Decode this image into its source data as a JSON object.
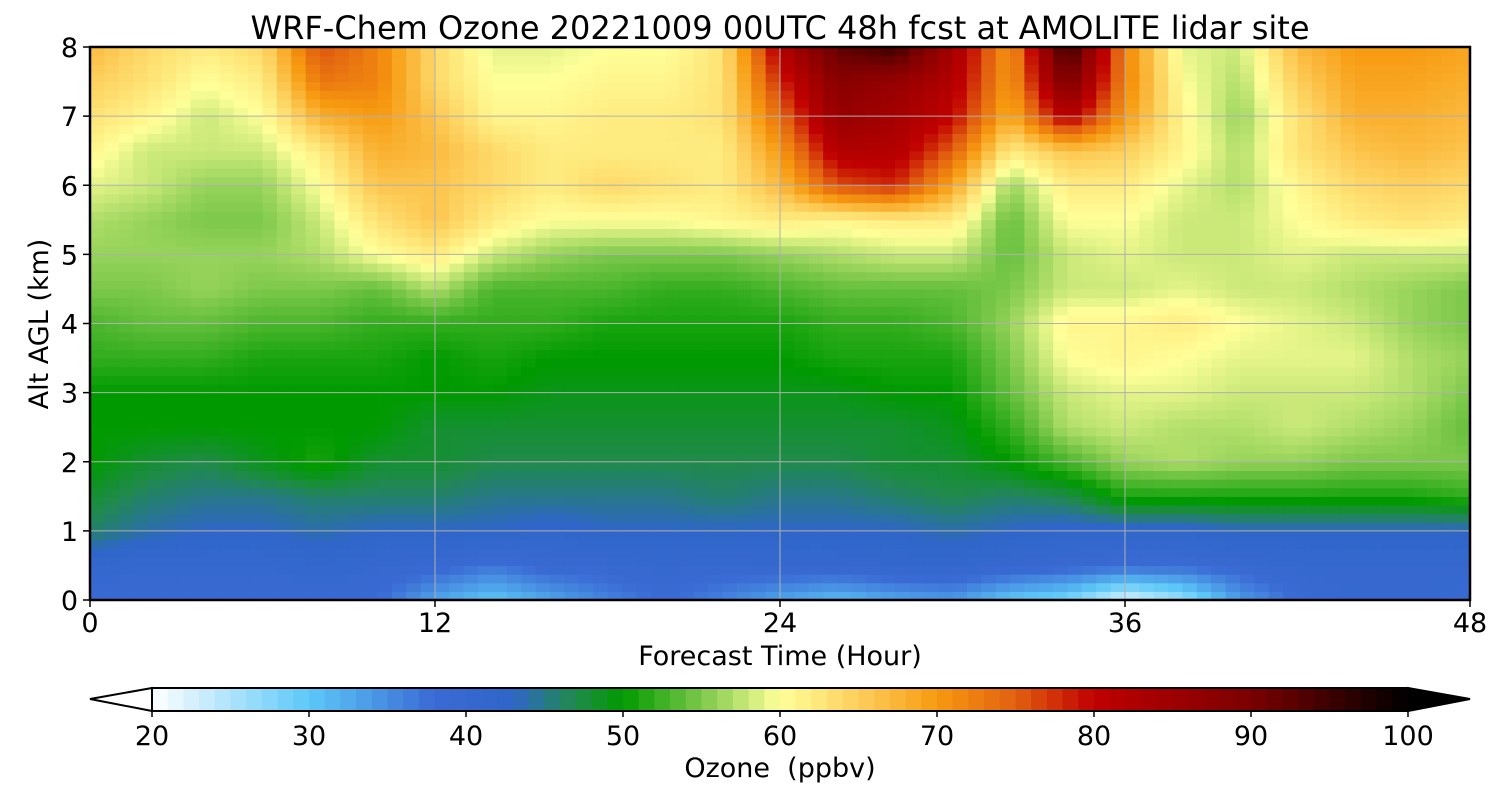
{
  "chart_data": {
    "type": "heatmap",
    "title": "WRF-Chem Ozone  20221009 00UTC 48h fcst at AMOLITE lidar site",
    "xlabel": "Forecast Time (Hour)",
    "ylabel": "Alt AGL (km)",
    "xlim": [
      0,
      48
    ],
    "ylim": [
      0,
      8
    ],
    "x_ticks": [
      "0",
      "12",
      "24",
      "36",
      "48"
    ],
    "y_ticks": [
      "0",
      "1",
      "2",
      "3",
      "4",
      "5",
      "6",
      "7",
      "8"
    ],
    "grid": true,
    "colorbar": {
      "label": "Ozone  (ppbv)",
      "range": [
        20,
        100
      ],
      "ticks": [
        "20",
        "30",
        "40",
        "50",
        "60",
        "70",
        "80",
        "90",
        "100"
      ],
      "extend": "both",
      "stops": [
        {
          "v": 20,
          "color": "#ffffff"
        },
        {
          "v": 30,
          "color": "#5cc8f8"
        },
        {
          "v": 38,
          "color": "#3a6ad4"
        },
        {
          "v": 43,
          "color": "#2f66c8"
        },
        {
          "v": 47,
          "color": "#1f8a4a"
        },
        {
          "v": 50,
          "color": "#009a00"
        },
        {
          "v": 55,
          "color": "#7cc84a"
        },
        {
          "v": 60,
          "color": "#ffff99"
        },
        {
          "v": 65,
          "color": "#fdcf5c"
        },
        {
          "v": 70,
          "color": "#f79a10"
        },
        {
          "v": 75,
          "color": "#e26010"
        },
        {
          "v": 80,
          "color": "#c00000"
        },
        {
          "v": 90,
          "color": "#7a0000"
        },
        {
          "v": 100,
          "color": "#000000"
        }
      ]
    },
    "x_hours": [
      0,
      2,
      4,
      6,
      8,
      10,
      12,
      14,
      16,
      18,
      20,
      22,
      24,
      26,
      28,
      30,
      32,
      34,
      36,
      38,
      40,
      42,
      44,
      46,
      48
    ],
    "y_km": [
      0,
      0.5,
      1,
      1.5,
      2,
      2.5,
      3,
      3.5,
      4,
      4.5,
      5,
      5.5,
      6,
      6.5,
      7,
      7.5,
      8
    ],
    "values_ppbv": [
      [
        38,
        38,
        38,
        38,
        38,
        38,
        33,
        30,
        33,
        36,
        38,
        36,
        33,
        31,
        33,
        34,
        30,
        28,
        22,
        26,
        34,
        38,
        40,
        40,
        39
      ],
      [
        41,
        40,
        40,
        40,
        41,
        40,
        39,
        37,
        39,
        39,
        40,
        39,
        40,
        40,
        41,
        41,
        40,
        39,
        38,
        38,
        39,
        40,
        40,
        40,
        40
      ],
      [
        46,
        44,
        43,
        43,
        44,
        43,
        43,
        43,
        42,
        43,
        43,
        43,
        43,
        43,
        43,
        44,
        43,
        42,
        42,
        42,
        43,
        43,
        43,
        43,
        43
      ],
      [
        48,
        46,
        45,
        45,
        46,
        46,
        46,
        45,
        45,
        45,
        45,
        46,
        45,
        45,
        46,
        47,
        46,
        47,
        51,
        51,
        51,
        51,
        51,
        51,
        52
      ],
      [
        50,
        48,
        47,
        49,
        51,
        48,
        48,
        47,
        47,
        47,
        47,
        47,
        47,
        47,
        48,
        48,
        50,
        53,
        56,
        57,
        56,
        56,
        55,
        55,
        55
      ],
      [
        50,
        50,
        50,
        50,
        50,
        50,
        48,
        48,
        48,
        48,
        48,
        48,
        48,
        48,
        48,
        49,
        52,
        57,
        58,
        57,
        57,
        58,
        57,
        56,
        54
      ],
      [
        50,
        50,
        50,
        50,
        50,
        50,
        50,
        50,
        49,
        49,
        49,
        49,
        49,
        49,
        50,
        50,
        54,
        58,
        59,
        59,
        58,
        58,
        58,
        57,
        55
      ],
      [
        52,
        52,
        52,
        51,
        51,
        51,
        50,
        51,
        50,
        50,
        50,
        50,
        50,
        51,
        51,
        51,
        55,
        60,
        61,
        60,
        59,
        59,
        59,
        57,
        56
      ],
      [
        53,
        54,
        54,
        53,
        53,
        52,
        52,
        52,
        52,
        51,
        51,
        51,
        51,
        52,
        52,
        53,
        56,
        61,
        61,
        62,
        60,
        59,
        58,
        56,
        55
      ],
      [
        55,
        55,
        56,
        55,
        55,
        54,
        57,
        53,
        53,
        53,
        52,
        52,
        53,
        54,
        54,
        54,
        55,
        58,
        58,
        59,
        58,
        58,
        57,
        56,
        55
      ],
      [
        56,
        56,
        56,
        56,
        57,
        60,
        62,
        58,
        56,
        55,
        55,
        55,
        56,
        57,
        58,
        58,
        54,
        58,
        59,
        58,
        58,
        59,
        58,
        58,
        58
      ],
      [
        57,
        56,
        55,
        55,
        58,
        63,
        66,
        62,
        60,
        60,
        60,
        61,
        62,
        61,
        62,
        62,
        54,
        60,
        60,
        58,
        58,
        60,
        62,
        63,
        62
      ],
      [
        59,
        58,
        56,
        56,
        60,
        66,
        66,
        64,
        62,
        64,
        63,
        62,
        67,
        76,
        78,
        69,
        56,
        62,
        62,
        59,
        57,
        61,
        64,
        65,
        64
      ],
      [
        61,
        58,
        58,
        58,
        62,
        68,
        67,
        64,
        62,
        62,
        62,
        62,
        70,
        82,
        82,
        75,
        62,
        66,
        65,
        61,
        57,
        63,
        66,
        67,
        66
      ],
      [
        63,
        61,
        58,
        60,
        68,
        70,
        66,
        61,
        61,
        62,
        62,
        63,
        74,
        86,
        84,
        80,
        68,
        82,
        70,
        61,
        56,
        63,
        68,
        68,
        67
      ],
      [
        65,
        63,
        60,
        62,
        73,
        72,
        64,
        60,
        60,
        61,
        61,
        63,
        78,
        88,
        86,
        82,
        70,
        90,
        72,
        60,
        57,
        65,
        69,
        69,
        68
      ],
      [
        67,
        64,
        62,
        64,
        76,
        72,
        64,
        59,
        59,
        60,
        60,
        63,
        82,
        92,
        95,
        84,
        70,
        96,
        72,
        59,
        58,
        67,
        70,
        70,
        69
      ]
    ]
  }
}
